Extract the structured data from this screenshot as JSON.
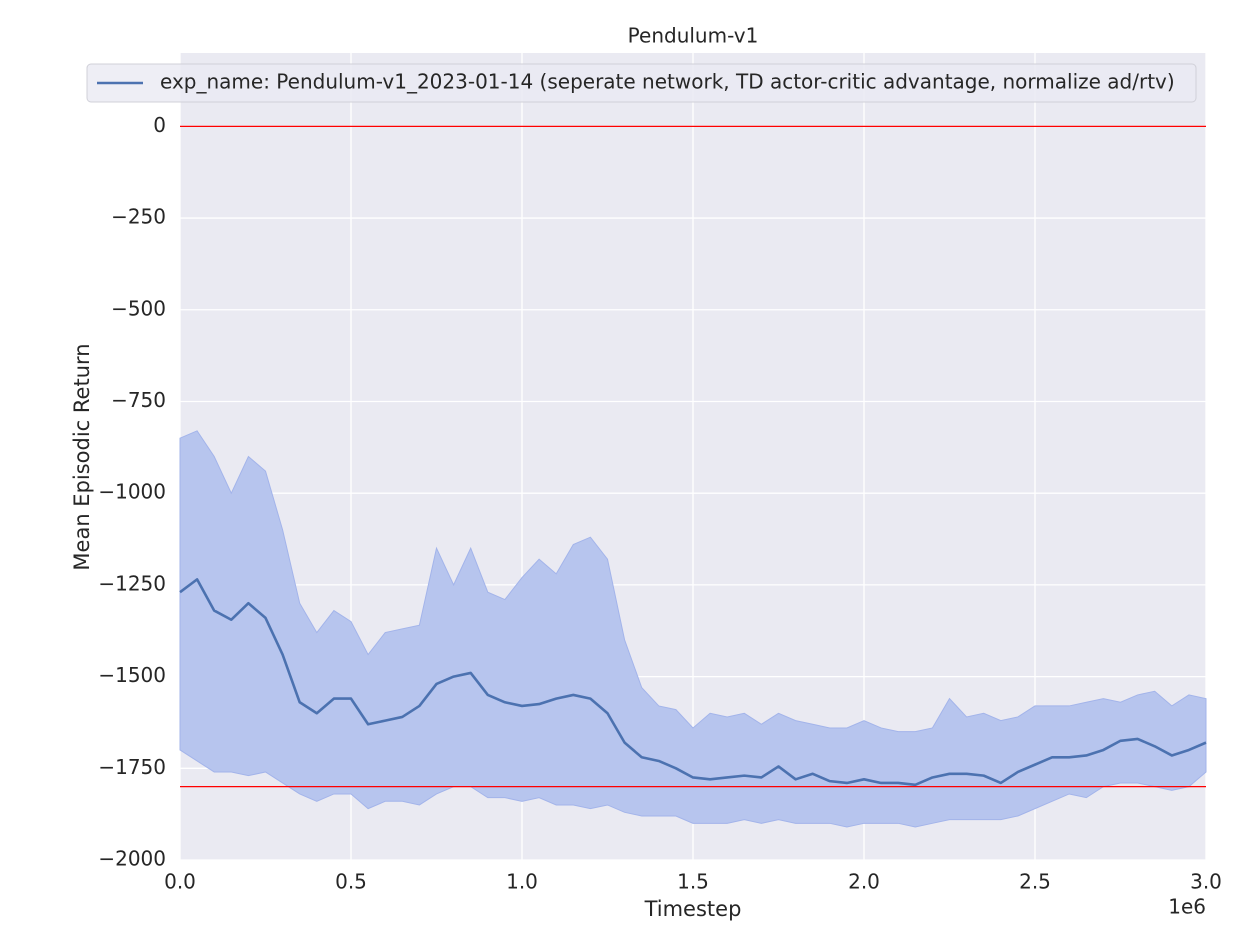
{
  "chart_data": {
    "type": "line",
    "title": "Pendulum-v1",
    "xlabel": "Timestep",
    "ylabel": "Mean Episodic Return",
    "x_offset_label": "1e6",
    "x": [
      0,
      0.05,
      0.1,
      0.15,
      0.2,
      0.25,
      0.3,
      0.35,
      0.4,
      0.45,
      0.5,
      0.55,
      0.6,
      0.65,
      0.7,
      0.75,
      0.8,
      0.85,
      0.9,
      0.95,
      1,
      1.05,
      1.1,
      1.15,
      1.2,
      1.25,
      1.3,
      1.35,
      1.4,
      1.45,
      1.5,
      1.55,
      1.6,
      1.65,
      1.7,
      1.75,
      1.8,
      1.85,
      1.9,
      1.95,
      2,
      2.05,
      2.1,
      2.15,
      2.2,
      2.25,
      2.3,
      2.35,
      2.4,
      2.45,
      2.5,
      2.55,
      2.6,
      2.65,
      2.7,
      2.75,
      2.8,
      2.85,
      2.9,
      2.95,
      3
    ],
    "series": [
      {
        "name": "exp_name: Pendulum-v1_2023-01-14 (seperate network, TD actor-critic advantage, normalize ad/rtv)",
        "color": "#4c72b0",
        "band_color": "#b7c5ee",
        "values": [
          -1270,
          -1235,
          -1320,
          -1345,
          -1300,
          -1340,
          -1440,
          -1570,
          -1600,
          -1560,
          -1560,
          -1630,
          -1620,
          -1610,
          -1580,
          -1520,
          -1500,
          -1490,
          -1550,
          -1570,
          -1580,
          -1575,
          -1560,
          -1550,
          -1560,
          -1600,
          -1680,
          -1720,
          -1730,
          -1750,
          -1775,
          -1780,
          -1775,
          -1770,
          -1775,
          -1745,
          -1780,
          -1765,
          -1785,
          -1790,
          -1780,
          -1790,
          -1790,
          -1795,
          -1775,
          -1765,
          -1765,
          -1770,
          -1790,
          -1760,
          -1740,
          -1720,
          -1720,
          -1715,
          -1700,
          -1675,
          -1670,
          -1690,
          -1715,
          -1700,
          -1680
        ],
        "upper": [
          -850,
          -830,
          -900,
          -1000,
          -900,
          -940,
          -1100,
          -1300,
          -1380,
          -1320,
          -1350,
          -1440,
          -1380,
          -1370,
          -1360,
          -1150,
          -1250,
          -1150,
          -1270,
          -1290,
          -1230,
          -1180,
          -1220,
          -1140,
          -1120,
          -1180,
          -1400,
          -1530,
          -1580,
          -1590,
          -1640,
          -1600,
          -1610,
          -1600,
          -1630,
          -1600,
          -1620,
          -1630,
          -1640,
          -1640,
          -1620,
          -1640,
          -1650,
          -1650,
          -1640,
          -1560,
          -1610,
          -1600,
          -1620,
          -1610,
          -1580,
          -1580,
          -1580,
          -1570,
          -1560,
          -1570,
          -1550,
          -1540,
          -1580,
          -1550,
          -1560
        ],
        "lower": [
          -1700,
          -1730,
          -1760,
          -1760,
          -1770,
          -1760,
          -1790,
          -1820,
          -1840,
          -1820,
          -1820,
          -1860,
          -1840,
          -1840,
          -1850,
          -1820,
          -1800,
          -1800,
          -1830,
          -1830,
          -1840,
          -1830,
          -1850,
          -1850,
          -1860,
          -1850,
          -1870,
          -1880,
          -1880,
          -1880,
          -1900,
          -1900,
          -1900,
          -1890,
          -1900,
          -1890,
          -1900,
          -1900,
          -1900,
          -1910,
          -1900,
          -1900,
          -1900,
          -1910,
          -1900,
          -1890,
          -1890,
          -1890,
          -1890,
          -1880,
          -1860,
          -1840,
          -1820,
          -1830,
          -1800,
          -1790,
          -1790,
          -1800,
          -1810,
          -1800,
          -1760
        ]
      }
    ],
    "hlines": [
      {
        "value": 0,
        "color": "#ff0000"
      },
      {
        "value": -1800,
        "color": "#ff0000"
      }
    ],
    "xlim": [
      0,
      3
    ],
    "ylim": [
      -2000,
      200
    ],
    "xticks": [
      {
        "value": 0,
        "label": "0.0"
      },
      0.5,
      {
        "value": 1,
        "label": "1.0"
      },
      1.5,
      {
        "value": 2,
        "label": "2.0"
      },
      2.5,
      {
        "value": 3,
        "label": "3.0"
      }
    ],
    "yticks": [
      {
        "value": -2000,
        "label": "−2000"
      },
      {
        "value": -1750,
        "label": "−1750"
      },
      {
        "value": -1500,
        "label": "−1500"
      },
      {
        "value": -1250,
        "label": "−1250"
      },
      {
        "value": -1000,
        "label": "−1000"
      },
      {
        "value": -750,
        "label": "−750"
      },
      {
        "value": -500,
        "label": "−500"
      },
      {
        "value": -250,
        "label": "−250"
      },
      0
    ],
    "grid": true,
    "legend": "upper center"
  }
}
